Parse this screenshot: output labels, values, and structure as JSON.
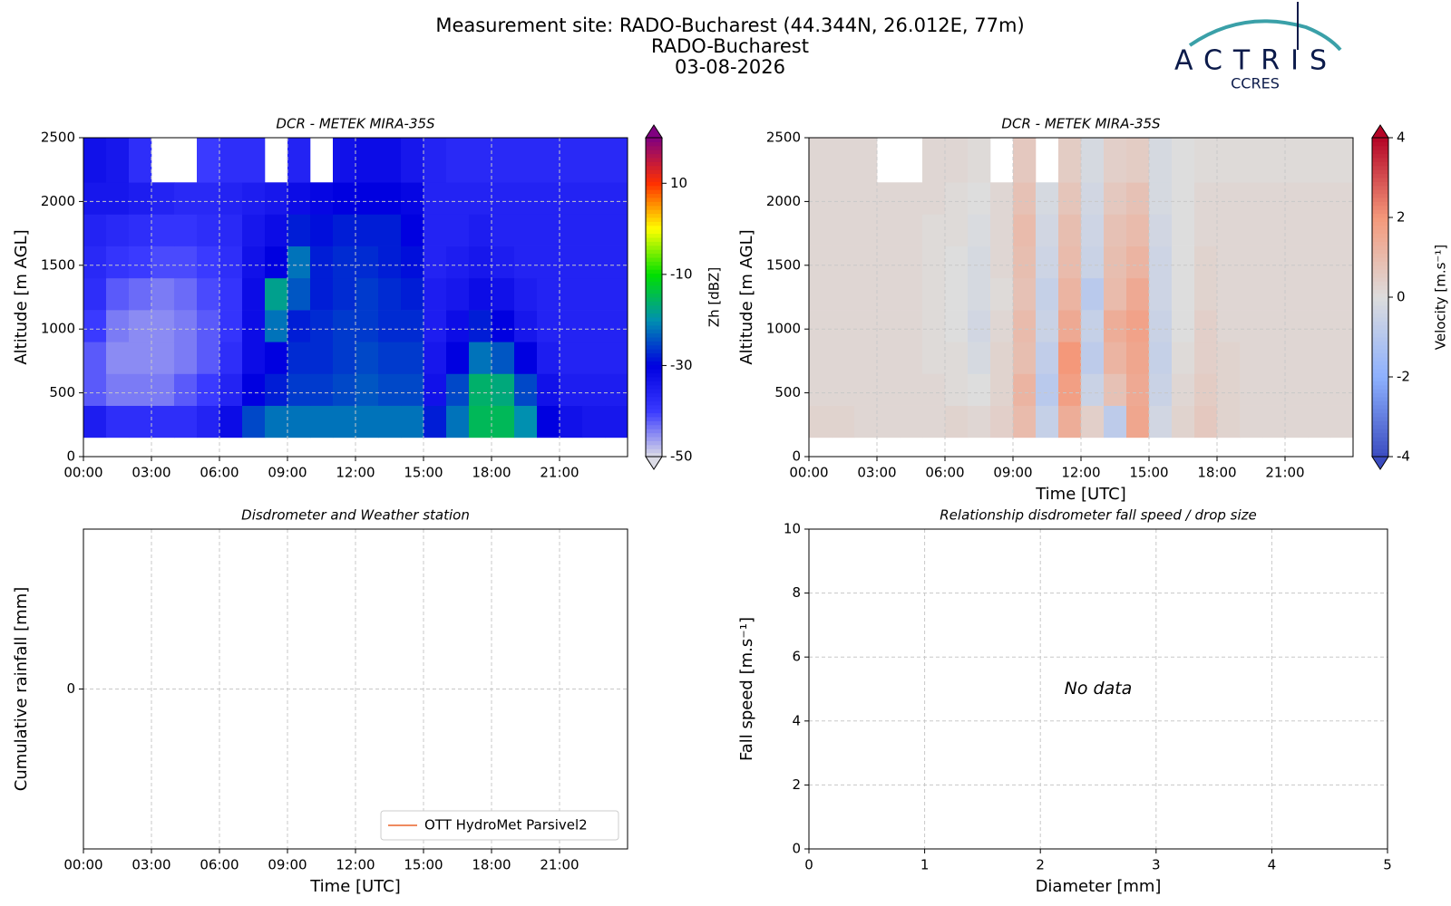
{
  "header": {
    "title_lines": [
      "Measurement site: RADO-Bucharest (44.344N, 26.012E, 77m)",
      "RADO-Bucharest",
      "03-08-2026"
    ],
    "logo": "ACTRIS",
    "logo_sub": "CCRES"
  },
  "chart_data": [
    {
      "type": "heatmap",
      "title": "DCR - METEK MIRA-35S",
      "y_label": "Altitude [m AGL]",
      "colorbar_label": "Zh [dBZ]",
      "x_edges": [
        0,
        1,
        2,
        3,
        4,
        5,
        6,
        7,
        8,
        9,
        10,
        11,
        12,
        13,
        14,
        15,
        16,
        17,
        18,
        19,
        20,
        21,
        22,
        23,
        24
      ],
      "y_edges": [
        150,
        400,
        650,
        900,
        1150,
        1400,
        1650,
        1900,
        2150,
        2500
      ],
      "z": [
        [
          -35,
          -38,
          -38,
          -38,
          -38,
          -36,
          -32,
          -25,
          -22,
          -22,
          -22,
          -22,
          -22,
          -22,
          -22,
          -28,
          -22,
          -15,
          -15,
          -20,
          -30,
          -33,
          -34,
          -34
        ],
        [
          -42,
          -44,
          -44,
          -44,
          -42,
          -40,
          -36,
          -30,
          -28,
          -26,
          -26,
          -25,
          -24,
          -25,
          -25,
          -33,
          -25,
          -16,
          -17,
          -25,
          -33,
          -35,
          -35,
          -35
        ],
        [
          -42,
          -45,
          -45,
          -45,
          -44,
          -42,
          -38,
          -32,
          -30,
          -27,
          -27,
          -26,
          -25,
          -26,
          -26,
          -34,
          -30,
          -22,
          -24,
          -30,
          -35,
          -36,
          -36,
          -36
        ],
        [
          -40,
          -44,
          -45,
          -45,
          -44,
          -42,
          -39,
          -32,
          -22,
          -28,
          -27,
          -26,
          -26,
          -27,
          -27,
          -35,
          -32,
          -28,
          -30,
          -34,
          -36,
          -36,
          -36,
          -36
        ],
        [
          -38,
          -42,
          -43,
          -44,
          -43,
          -41,
          -39,
          -32,
          -18,
          -24,
          -28,
          -27,
          -26,
          -27,
          -28,
          -35,
          -34,
          -32,
          -33,
          -35,
          -36,
          -36,
          -36,
          -36
        ],
        [
          -37,
          -39,
          -40,
          -41,
          -41,
          -40,
          -38,
          -33,
          -30,
          -22,
          -28,
          -27,
          -27,
          -28,
          -29,
          -36,
          -35,
          -34,
          -35,
          -36,
          -36,
          -36,
          -36,
          -36
        ],
        [
          -36,
          -37,
          -38,
          -39,
          -39,
          -38,
          -37,
          -34,
          -32,
          -28,
          -29,
          -28,
          -28,
          -28,
          -30,
          -36,
          -36,
          -35,
          -36,
          -36,
          -36,
          -36,
          -36,
          -36
        ],
        [
          -34,
          -34,
          -35,
          -36,
          -37,
          -37,
          -36,
          -35,
          -34,
          -32,
          -31,
          -30,
          -30,
          -30,
          -31,
          -36,
          -36,
          -36,
          -36,
          -36,
          -36,
          -36,
          -36,
          -36
        ],
        [
          -33,
          -34,
          -38,
          null,
          null,
          -40,
          -38,
          -38,
          null,
          -36,
          null,
          -33,
          -32,
          -32,
          -34,
          -36,
          -37,
          -37,
          -37,
          -37,
          -37,
          -37,
          -37,
          -37
        ]
      ],
      "colormap": [
        "#dcdce6",
        "#3a3aff",
        "#0000e0",
        "#0090b0",
        "#00e000",
        "#ffff00",
        "#ff3000",
        "#800080"
      ],
      "clim": [
        -50,
        20
      ],
      "cticks": [
        -50,
        -30,
        -10,
        10
      ],
      "xlim": [
        0,
        24
      ],
      "xticks": [
        {
          "value": 0,
          "label": "00:00"
        },
        {
          "value": 3,
          "label": "03:00"
        },
        {
          "value": 6,
          "label": "06:00"
        },
        {
          "value": 9,
          "label": "09:00"
        },
        {
          "value": 12,
          "label": "12:00"
        },
        {
          "value": 15,
          "label": "15:00"
        },
        {
          "value": 18,
          "label": "18:00"
        },
        {
          "value": 21,
          "label": "21:00"
        }
      ],
      "ylim": [
        0,
        2500
      ],
      "yticks": [
        0,
        500,
        1000,
        1500,
        2000,
        2500
      ],
      "grid": true
    },
    {
      "type": "heatmap",
      "title": "DCR - METEK MIRA-35S",
      "x_label": "Time [UTC]",
      "y_label": "Altitude [m AGL]",
      "colorbar_label": "Velocity [m.s⁻¹]",
      "x_edges": [
        0,
        1,
        2,
        3,
        4,
        5,
        6,
        7,
        8,
        9,
        10,
        11,
        12,
        13,
        14,
        15,
        16,
        17,
        18,
        19,
        20,
        21,
        22,
        23,
        24
      ],
      "y_edges": [
        150,
        400,
        650,
        900,
        1150,
        1400,
        1650,
        1900,
        2150,
        2500
      ],
      "z": [
        [
          0.3,
          0.3,
          0.2,
          0.2,
          0.2,
          0.2,
          0.3,
          0.2,
          0.4,
          1.0,
          -0.6,
          1.4,
          0.4,
          -0.8,
          1.6,
          -0.3,
          0.3,
          0.6,
          0.3,
          0.2,
          0.2,
          0.2,
          0.2,
          0.2
        ],
        [
          0.2,
          0.2,
          0.2,
          0.2,
          0.2,
          0.2,
          0.1,
          0.0,
          0.3,
          1.2,
          -0.9,
          1.8,
          -0.5,
          0.8,
          1.5,
          -0.5,
          0.2,
          0.5,
          0.3,
          0.2,
          0.2,
          0.2,
          0.2,
          0.2
        ],
        [
          0.2,
          0.2,
          0.2,
          0.2,
          0.2,
          0.1,
          0.1,
          -0.2,
          0.3,
          0.9,
          -0.7,
          2.0,
          -0.8,
          1.2,
          1.6,
          -0.6,
          0.1,
          0.4,
          0.3,
          0.2,
          0.2,
          0.2,
          0.2,
          0.2
        ],
        [
          0.2,
          0.2,
          0.2,
          0.2,
          0.2,
          0.1,
          0.0,
          -0.3,
          0.2,
          1.0,
          -0.5,
          1.5,
          -0.6,
          1.4,
          1.7,
          -0.5,
          0.0,
          0.4,
          0.2,
          0.2,
          0.2,
          0.2,
          0.2,
          0.2
        ],
        [
          0.2,
          0.2,
          0.2,
          0.2,
          0.2,
          0.1,
          0.0,
          -0.2,
          0.1,
          0.8,
          -0.6,
          1.2,
          -0.9,
          1.0,
          1.5,
          -0.4,
          0.0,
          0.3,
          0.2,
          0.2,
          0.2,
          0.2,
          0.2,
          0.2
        ],
        [
          0.2,
          0.2,
          0.2,
          0.2,
          0.2,
          0.1,
          0.0,
          -0.2,
          0.2,
          0.9,
          -0.4,
          1.0,
          -0.5,
          0.9,
          1.2,
          -0.4,
          0.0,
          0.3,
          0.2,
          0.2,
          0.2,
          0.2,
          0.2,
          0.2
        ],
        [
          0.2,
          0.2,
          0.2,
          0.2,
          0.2,
          0.1,
          0.1,
          -0.1,
          0.2,
          1.0,
          -0.3,
          0.9,
          -0.4,
          0.8,
          1.0,
          -0.3,
          0.0,
          0.2,
          0.2,
          0.2,
          0.2,
          0.2,
          0.2,
          0.2
        ],
        [
          0.2,
          0.2,
          0.2,
          0.2,
          0.2,
          0.2,
          0.1,
          0.0,
          0.2,
          0.8,
          -0.2,
          0.7,
          -0.3,
          0.6,
          0.8,
          -0.2,
          0.0,
          0.2,
          0.2,
          0.2,
          0.2,
          0.2,
          0.2,
          0.2
        ],
        [
          0.2,
          0.2,
          0.2,
          null,
          null,
          0.2,
          0.2,
          0.1,
          null,
          0.6,
          null,
          0.5,
          -0.2,
          0.4,
          0.5,
          -0.2,
          0.0,
          0.1,
          0.1,
          0.1,
          0.1,
          0.1,
          0.1,
          0.1
        ]
      ],
      "colormap": [
        "#3b4cc0",
        "#8db0fe",
        "#dddddd",
        "#f4987a",
        "#b40426"
      ],
      "clim": [
        -4,
        4
      ],
      "cticks": [
        -4,
        -2,
        0,
        2,
        4
      ],
      "xlim": [
        0,
        24
      ],
      "xticks": [
        {
          "value": 0,
          "label": "00:00"
        },
        {
          "value": 3,
          "label": "03:00"
        },
        {
          "value": 6,
          "label": "06:00"
        },
        {
          "value": 9,
          "label": "09:00"
        },
        {
          "value": 12,
          "label": "12:00"
        },
        {
          "value": 15,
          "label": "15:00"
        },
        {
          "value": 18,
          "label": "18:00"
        },
        {
          "value": 21,
          "label": "21:00"
        }
      ],
      "ylim": [
        0,
        2500
      ],
      "yticks": [
        0,
        500,
        1000,
        1500,
        2000,
        2500
      ],
      "grid": true
    },
    {
      "type": "line",
      "title": "Disdrometer and Weather station",
      "x_label": "Time [UTC]",
      "y_label": "Cumulative rainfall [mm]",
      "x": [
        0,
        24
      ],
      "series": [
        {
          "name": "OTT HydroMet Parsivel2",
          "color": "#ef8a5f",
          "values": [
            0,
            0
          ]
        }
      ],
      "legend": "lower right",
      "xlim": [
        0,
        24
      ],
      "xticks": [
        {
          "value": 0,
          "label": "00:00"
        },
        {
          "value": 3,
          "label": "03:00"
        },
        {
          "value": 6,
          "label": "06:00"
        },
        {
          "value": 9,
          "label": "09:00"
        },
        {
          "value": 12,
          "label": "12:00"
        },
        {
          "value": 15,
          "label": "15:00"
        },
        {
          "value": 18,
          "label": "18:00"
        },
        {
          "value": 21,
          "label": "21:00"
        }
      ],
      "ylim": [
        -1,
        1
      ],
      "yticks": [
        0
      ],
      "grid": true
    },
    {
      "type": "scatter",
      "title": "Relationship disdrometer fall speed / drop size",
      "x_label": "Diameter [mm]",
      "y_label": "Fall speed [m.s⁻¹]",
      "annotation": "No data",
      "xlim": [
        0,
        5
      ],
      "xticks": [
        0,
        1,
        2,
        3,
        4,
        5
      ],
      "ylim": [
        0,
        10
      ],
      "yticks": [
        0,
        2,
        4,
        6,
        8,
        10
      ],
      "grid": true
    }
  ]
}
